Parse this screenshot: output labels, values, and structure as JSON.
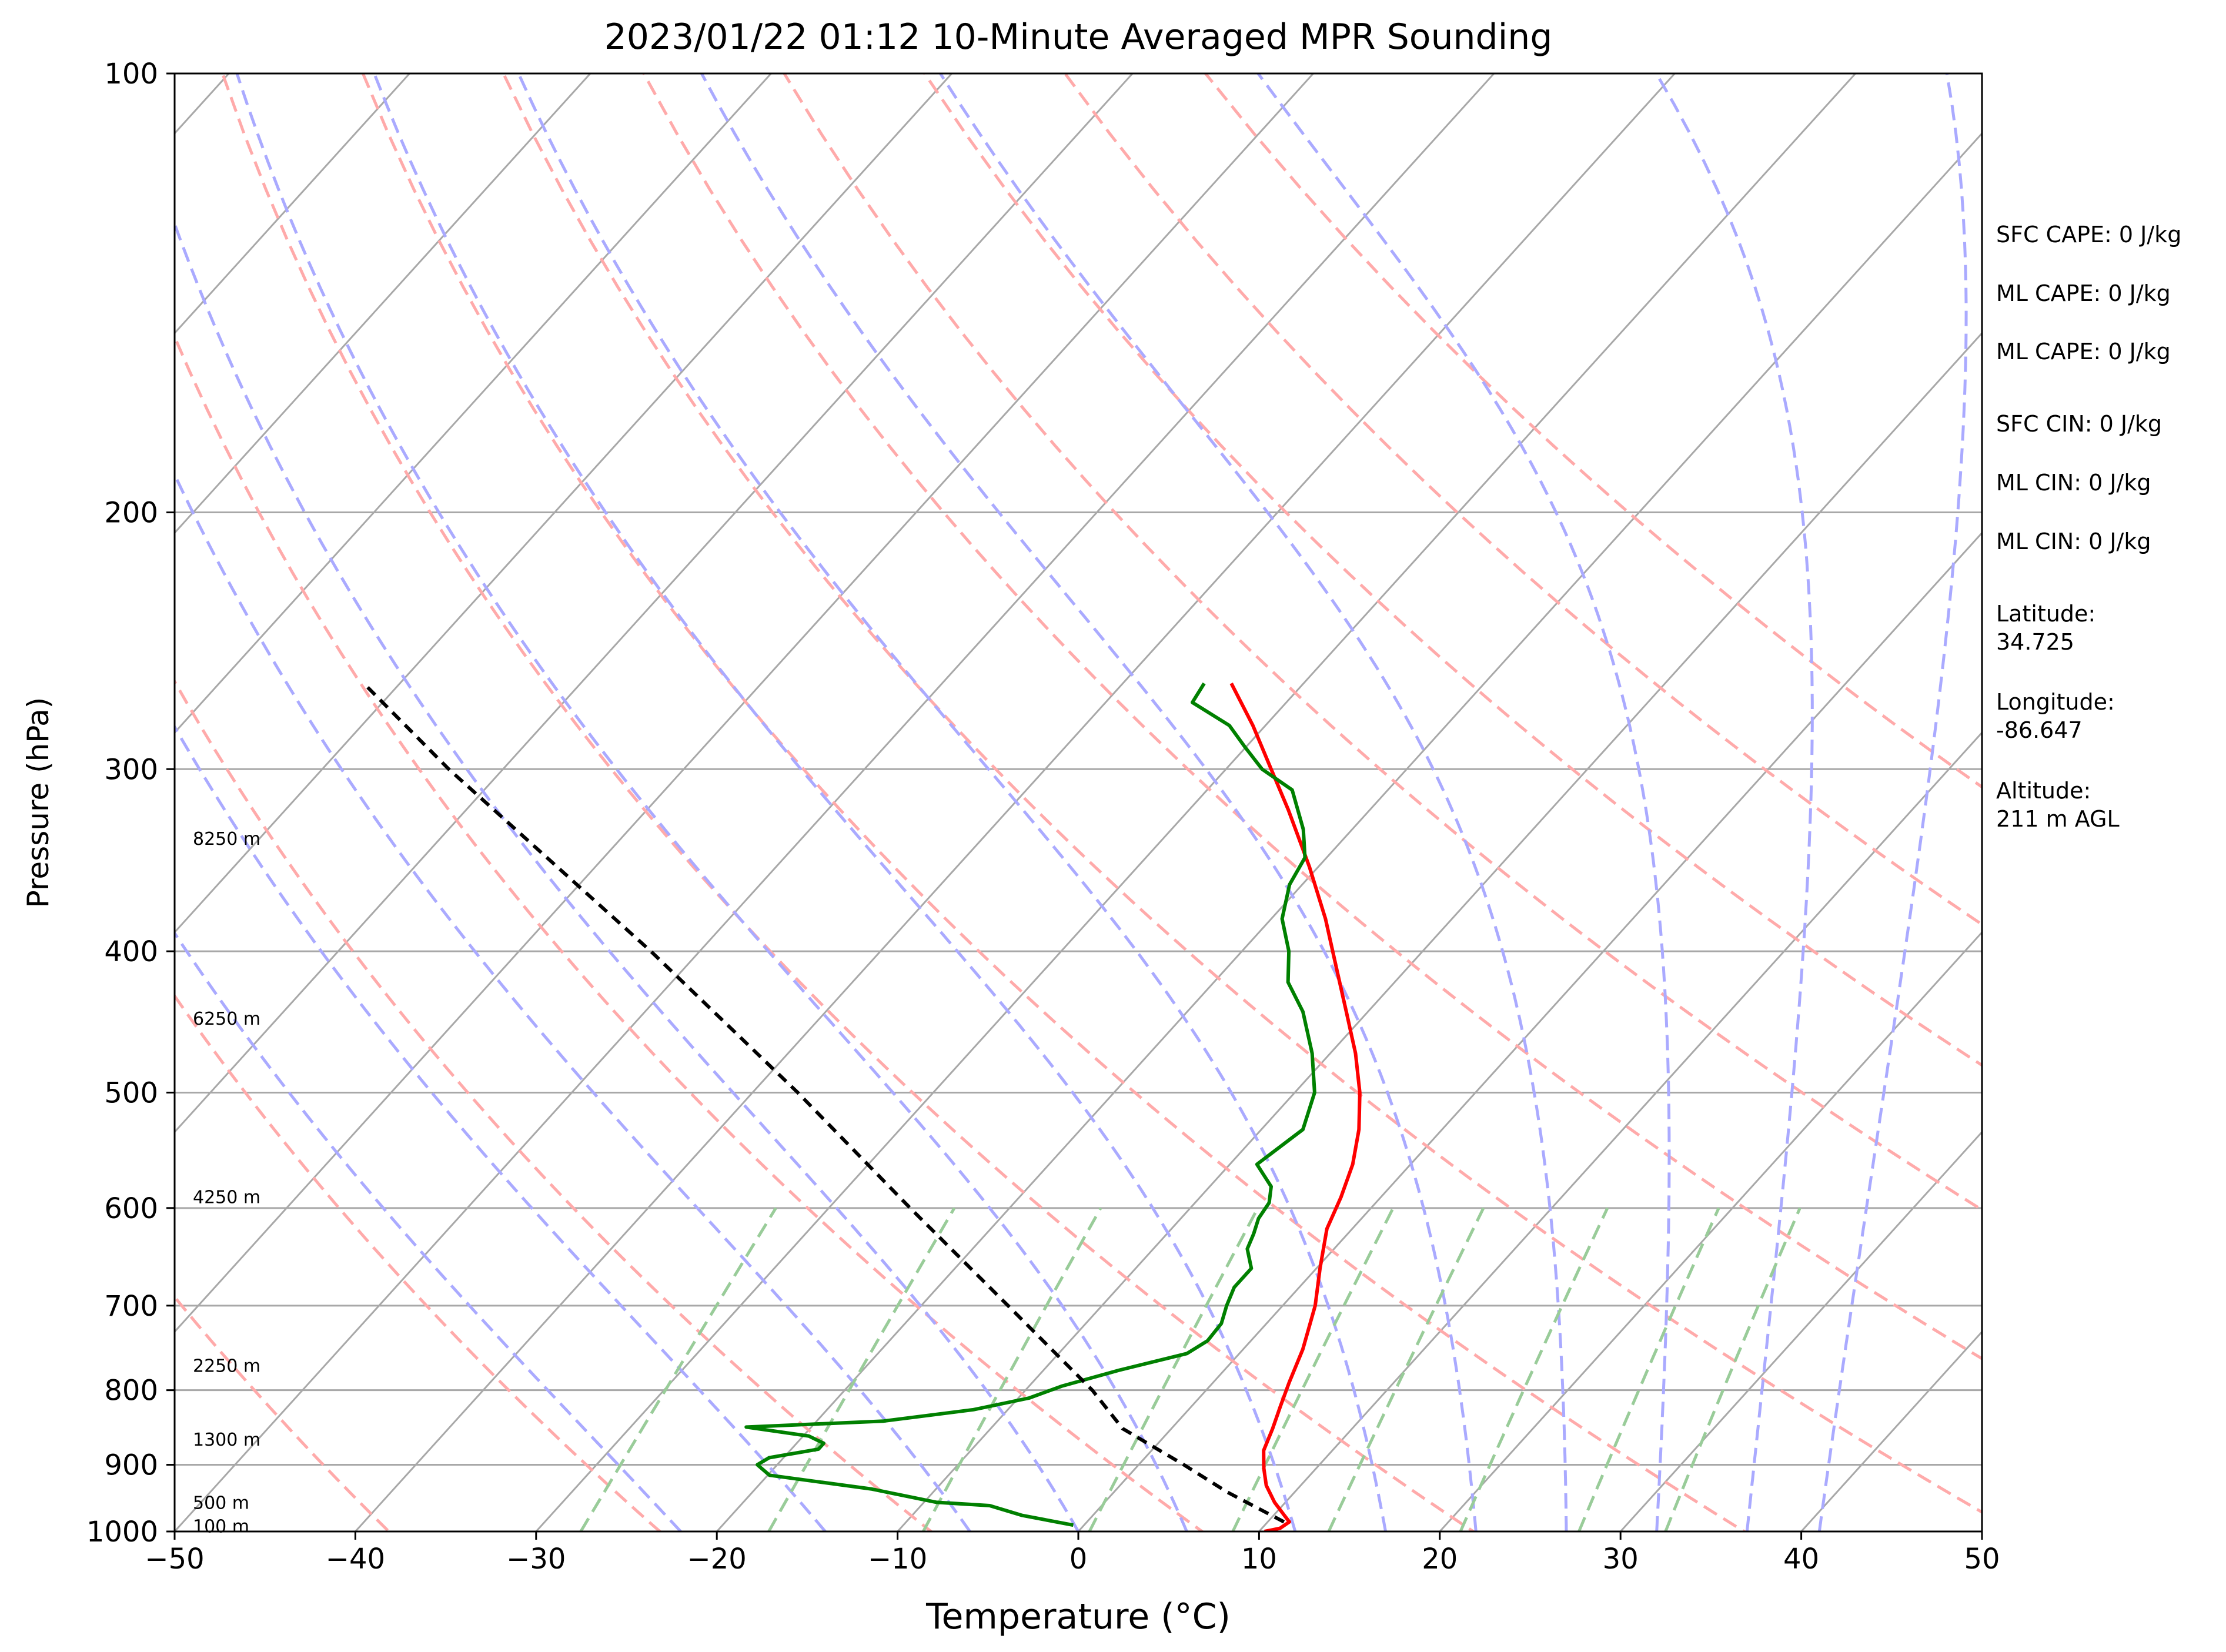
{
  "chart_data": {
    "type": "line",
    "title": "2023/01/22 01:12 10-Minute Averaged MPR Sounding",
    "xlabel": "Temperature (°C)",
    "ylabel": "Pressure (hPa)",
    "xlim": [
      -50,
      50
    ],
    "ylim": [
      1000,
      100
    ],
    "y_scale": "log",
    "grid": true,
    "x_ticks": [
      "−50",
      "−40",
      "−30",
      "−20",
      "−10",
      "0",
      "10",
      "20",
      "30",
      "40",
      "50"
    ],
    "x_tick_values": [
      -50,
      -40,
      -30,
      -20,
      -10,
      0,
      10,
      20,
      30,
      40,
      50
    ],
    "y_ticks": [
      "100",
      "200",
      "300",
      "400",
      "500",
      "600",
      "700",
      "800",
      "900",
      "1000"
    ],
    "y_tick_values": [
      100,
      200,
      300,
      400,
      500,
      600,
      700,
      800,
      900,
      1000
    ],
    "skew_degC_per_decade": 73,
    "isotherm_temps": [
      -150,
      -140,
      -130,
      -120,
      -110,
      -100,
      -90,
      -80,
      -70,
      -60,
      -50,
      -40,
      -30,
      -20,
      -10,
      0,
      10,
      20,
      30,
      40,
      50
    ],
    "dry_adiabat_thetas_K": [
      220,
      235,
      250,
      265,
      280,
      295,
      310,
      325,
      340,
      355,
      370,
      385,
      400
    ],
    "moist_adiabat_starts_degC": [
      -22,
      -14,
      -6,
      0,
      6,
      12,
      17,
      22,
      27,
      32,
      37,
      41
    ],
    "mixing_ratio_lines_gkg": [
      0.4,
      1,
      2,
      4,
      7,
      10,
      16,
      24,
      32
    ],
    "colors": {
      "temperature": "#ff0000",
      "dewpoint": "#008000",
      "parcel": "#000000",
      "isotherm": "#a8a8a8",
      "dry_adiabat": "#ffaaaa",
      "moist_adiabat": "#aaaaff",
      "mixing_ratio": "#99cc99"
    },
    "series": [
      {
        "key": "temperature",
        "style": "solid",
        "points": [
          [
            1000,
            10.3
          ],
          [
            995,
            11.0
          ],
          [
            985,
            11.2
          ],
          [
            975,
            10.6
          ],
          [
            955,
            9.4
          ],
          [
            930,
            8.1
          ],
          [
            905,
            7.1
          ],
          [
            880,
            6.2
          ],
          [
            850,
            5.6
          ],
          [
            820,
            4.9
          ],
          [
            790,
            4.2
          ],
          [
            750,
            3.3
          ],
          [
            700,
            1.8
          ],
          [
            660,
            0.2
          ],
          [
            620,
            -1.4
          ],
          [
            590,
            -2.2
          ],
          [
            560,
            -3.2
          ],
          [
            530,
            -4.6
          ],
          [
            500,
            -6.4
          ],
          [
            470,
            -8.6
          ],
          [
            440,
            -11.2
          ],
          [
            410,
            -14.0
          ],
          [
            380,
            -17.0
          ],
          [
            350,
            -20.5
          ],
          [
            320,
            -24.5
          ],
          [
            300,
            -27.5
          ],
          [
            280,
            -30.7
          ],
          [
            262,
            -34.0
          ]
        ]
      },
      {
        "key": "dewpoint",
        "style": "solid",
        "points": [
          [
            990,
            -0.6
          ],
          [
            975,
            -3.9
          ],
          [
            960,
            -6.2
          ],
          [
            955,
            -9.3
          ],
          [
            935,
            -13.6
          ],
          [
            915,
            -19.9
          ],
          [
            900,
            -21.1
          ],
          [
            890,
            -20.8
          ],
          [
            878,
            -18.5
          ],
          [
            870,
            -18.5
          ],
          [
            860,
            -19.7
          ],
          [
            848,
            -23.6
          ],
          [
            840,
            -16.3
          ],
          [
            825,
            -11.9
          ],
          [
            810,
            -9.4
          ],
          [
            795,
            -8.2
          ],
          [
            775,
            -5.8
          ],
          [
            755,
            -2.9
          ],
          [
            740,
            -2.4
          ],
          [
            720,
            -2.5
          ],
          [
            700,
            -3.1
          ],
          [
            680,
            -3.6
          ],
          [
            660,
            -3.6
          ],
          [
            640,
            -4.8
          ],
          [
            625,
            -5.2
          ],
          [
            610,
            -5.7
          ],
          [
            595,
            -5.9
          ],
          [
            580,
            -6.6
          ],
          [
            560,
            -8.5
          ],
          [
            530,
            -7.7
          ],
          [
            500,
            -8.9
          ],
          [
            470,
            -11.0
          ],
          [
            440,
            -13.6
          ],
          [
            420,
            -15.9
          ],
          [
            400,
            -17.4
          ],
          [
            380,
            -19.4
          ],
          [
            360,
            -20.7
          ],
          [
            345,
            -21.2
          ],
          [
            330,
            -22.7
          ],
          [
            310,
            -25.3
          ],
          [
            300,
            -28.0
          ],
          [
            290,
            -30.0
          ],
          [
            280,
            -32.0
          ],
          [
            270,
            -35.2
          ],
          [
            262,
            -35.5
          ]
        ]
      },
      {
        "key": "parcel",
        "style": "dashed",
        "points": [
          [
            985,
            10.9
          ],
          [
            940,
            6.3
          ],
          [
            900,
            2.5
          ],
          [
            850,
            -2.7
          ],
          [
            800,
            -6.3
          ],
          [
            750,
            -10.6
          ],
          [
            700,
            -15.2
          ],
          [
            600,
            -25.5
          ],
          [
            500,
            -37.5
          ],
          [
            400,
            -52.7
          ],
          [
            300,
            -73.0
          ],
          [
            262,
            -82.0
          ]
        ]
      }
    ],
    "height_labels": [
      {
        "label": "8250 m",
        "p": 335
      },
      {
        "label": "6250 m",
        "p": 445
      },
      {
        "label": "4250 m",
        "p": 590
      },
      {
        "label": "2250 m",
        "p": 770
      },
      {
        "label": "1300 m",
        "p": 865
      },
      {
        "label": "500 m",
        "p": 956
      },
      {
        "label": "100 m",
        "p": 992
      }
    ],
    "annotations": [
      "SFC CAPE: 0 J/kg",
      "ML CAPE: 0 J/kg",
      "ML CAPE: 0 J/kg",
      "SFC CIN: 0 J/kg",
      "ML CIN: 0 J/kg",
      "ML CIN: 0 J/kg",
      "Latitude:",
      "34.725",
      "Longitude:",
      "-86.647",
      "Altitude:",
      "211 m AGL"
    ]
  }
}
